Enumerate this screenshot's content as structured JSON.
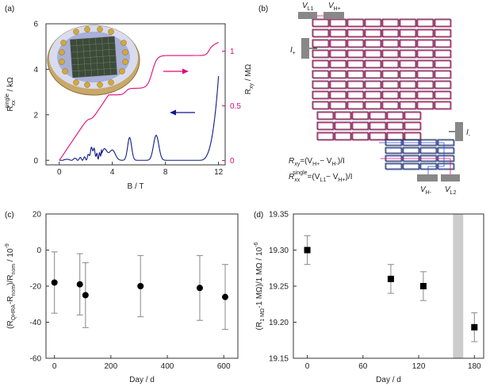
{
  "panels": {
    "a": {
      "label": "(a)"
    },
    "b": {
      "label": "(b)"
    },
    "c": {
      "label": "(c)"
    },
    "d": {
      "label": "(d)"
    }
  },
  "circuit": {
    "vl1": "V",
    "vl1_sub": "L1",
    "vhp": "V",
    "vhp_sub": "H+",
    "iplus": "I",
    "iplus_sub": "+",
    "iminus": "I",
    "iminus_sub": "-",
    "vhm": "V",
    "vhm_sub": "H-",
    "vl2": "V",
    "vl2_sub": "L2",
    "eq1": "R_xy=(V_H+−V_H−)/I",
    "eq1_parts": {
      "a": "R",
      "b": "xy",
      "c": "=(V",
      "d": "H+",
      "e": "− V",
      "f": "H-",
      "g": ")/I"
    },
    "eq2_parts": {
      "a": "R",
      "b": "xx",
      "c": "single",
      "d": "=(V",
      "e": "L1",
      "f": "− V",
      "g": "H+",
      "h": ")/I"
    }
  },
  "colors": {
    "blue": "#0d1a8a",
    "magenta": "#e0097a",
    "gray": "#888888",
    "shade": "#cccccc"
  },
  "chart_data": [
    {
      "id": "a",
      "type": "line",
      "xlabel": "B / T",
      "ylabel_left": "R_xx^single / kΩ",
      "ylabel_left_parts": {
        "r": "R",
        "sub": "xx",
        "sup": "single",
        "unit": " / kΩ"
      },
      "ylabel_right": "R_xy / MΩ",
      "ylabel_right_parts": {
        "r": "R",
        "sub": "xy",
        "unit": " / MΩ"
      },
      "xlim": [
        -1,
        12.5
      ],
      "ylim_left": [
        -0.2,
        6
      ],
      "ylim_right": [
        -0.04,
        1.25
      ],
      "xticks": [
        0,
        4,
        8,
        12
      ],
      "yticks_left": [
        0,
        2,
        4,
        6
      ],
      "yticks_right": [
        0,
        0.5,
        1
      ],
      "yticks_right_labels": [
        "0",
        "0.5",
        "1"
      ],
      "series": [
        {
          "name": "R_xx^single",
          "axis": "left",
          "color": "#0d1a8a"
        },
        {
          "name": "R_xy",
          "axis": "right",
          "color": "#e0097a"
        }
      ],
      "annotations": [
        "arrow pointing left to R_xx axis",
        "arrow pointing right to R_xy axis"
      ]
    },
    {
      "id": "c",
      "type": "scatter",
      "xlabel": "Day / d",
      "ylabel": "(R_QHRA-R_nom)/R_nom / 10^-9",
      "ylabel_parts": {
        "a": "(R",
        "b": "QHRA",
        "c": "-R",
        "d": "nom",
        "e": ")/R",
        "f": "nom",
        "g": " / 10",
        "h": "-9"
      },
      "xlim": [
        -30,
        650
      ],
      "ylim": [
        -60,
        20
      ],
      "xticks": [
        0,
        200,
        400,
        600
      ],
      "yticks": [
        -60,
        -40,
        -20,
        0,
        20
      ],
      "points": [
        {
          "x": 0,
          "y": -18,
          "err": 17
        },
        {
          "x": 90,
          "y": -19,
          "err": 17
        },
        {
          "x": 110,
          "y": -25,
          "err": 18
        },
        {
          "x": 305,
          "y": -20,
          "err": 17
        },
        {
          "x": 515,
          "y": -21,
          "err": 18
        },
        {
          "x": 605,
          "y": -26,
          "err": 18
        }
      ]
    },
    {
      "id": "d",
      "type": "scatter",
      "xlabel": "Day / d",
      "ylabel": "(R_1MΩ-1 MΩ)/1 MΩ / 10^-6",
      "ylabel_parts": {
        "a": "(R",
        "b": "1 MΩ",
        "c": "-1 MΩ)/1 MΩ / 10",
        "d": "-6"
      },
      "xlim": [
        -15,
        190
      ],
      "ylim": [
        19.15,
        19.35
      ],
      "xticks": [
        0,
        60,
        120,
        180
      ],
      "yticks": [
        19.15,
        19.2,
        19.25,
        19.3,
        19.35
      ],
      "yticks_labels": [
        "19.15",
        "19.20",
        "19.25",
        "19.30",
        "19.35"
      ],
      "shaded_region": [
        157,
        168
      ],
      "points": [
        {
          "x": 0,
          "y": 19.3,
          "err": 0.02
        },
        {
          "x": 90,
          "y": 19.26,
          "err": 0.02
        },
        {
          "x": 125,
          "y": 19.25,
          "err": 0.02
        },
        {
          "x": 180,
          "y": 19.193,
          "err": 0.02
        }
      ]
    }
  ]
}
